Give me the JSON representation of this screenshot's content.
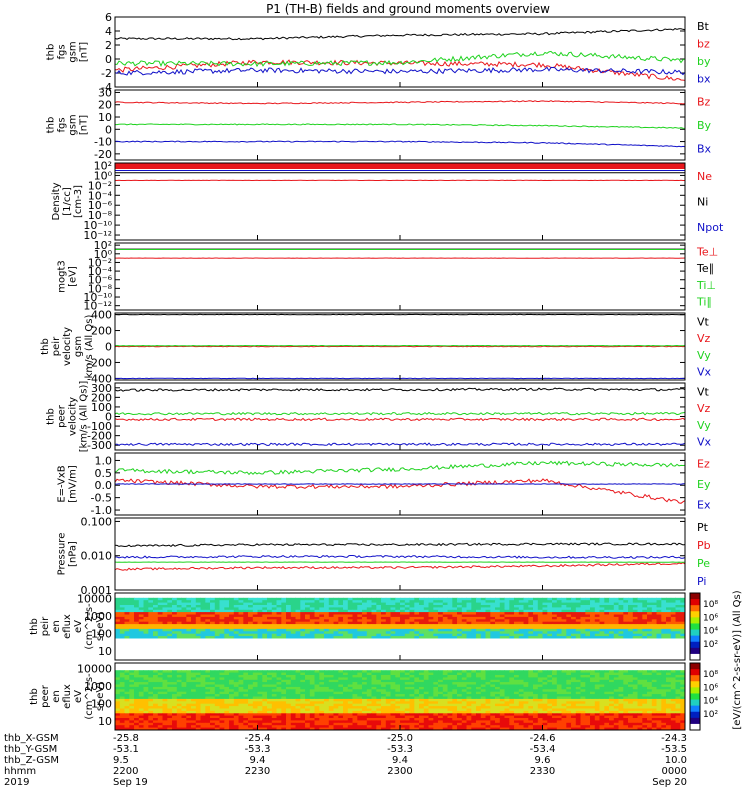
{
  "title": "P1 (TH-B) fields and ground moments overview",
  "colors": {
    "black": "#000000",
    "red": "#e8161b",
    "green": "#1fd21f",
    "blue": "#1010c8"
  },
  "panels": [
    {
      "id": "p1",
      "ylabel": [
        "thb",
        "fgs",
        "gsm",
        "[nT]"
      ],
      "yticks": [
        6,
        4,
        2,
        0,
        -2,
        -4
      ],
      "ylim": [
        -4,
        6
      ],
      "legend": [
        {
          "text": "Bt",
          "color": "black"
        },
        {
          "text": "bz",
          "color": "red"
        },
        {
          "text": "by",
          "color": "green"
        },
        {
          "text": "bx",
          "color": "blue"
        }
      ]
    },
    {
      "id": "p2",
      "ylabel": [
        "thb",
        "fgs",
        "gsm",
        "[nT]"
      ],
      "yticks": [
        30,
        20,
        10,
        0,
        -10,
        -20
      ],
      "ylim": [
        -25,
        32
      ],
      "legend": [
        {
          "text": "Bz",
          "color": "red"
        },
        {
          "text": "By",
          "color": "green"
        },
        {
          "text": "Bx",
          "color": "blue"
        }
      ]
    },
    {
      "id": "p3",
      "ylabel": [
        "Density",
        "[1/cc]",
        "[cm-3]"
      ],
      "yticks": [
        "10²",
        "10⁰",
        "10⁻²",
        "10⁻⁴",
        "10⁻⁶",
        "10⁻⁸",
        "10⁻¹⁰",
        "10⁻¹²"
      ],
      "ylim": [
        -13,
        2.5
      ],
      "legend": [
        {
          "text": "Ne",
          "color": "red"
        },
        {
          "text": "Ni",
          "color": "black"
        },
        {
          "text": "Npot",
          "color": "blue"
        }
      ]
    },
    {
      "id": "p4",
      "ylabel": [
        "mogt3",
        "[eV]"
      ],
      "yticks": [
        "10²",
        "10⁰",
        "10⁻²",
        "10⁻⁴",
        "10⁻⁶",
        "10⁻⁸",
        "10⁻¹⁰",
        "10⁻¹²"
      ],
      "ylim": [
        -13,
        2.5
      ],
      "legend": [
        {
          "text": "Te⊥",
          "color": "red"
        },
        {
          "text": "Te∥",
          "color": "black"
        },
        {
          "text": "Ti⊥",
          "color": "green"
        },
        {
          "text": "Ti∥",
          "color": "green"
        }
      ]
    },
    {
      "id": "p5",
      "ylabel": [
        "thb",
        "peir",
        "velocity",
        "gsm",
        "km/s (All Qs)"
      ],
      "yticks": [
        400,
        200,
        0,
        -200,
        -400
      ],
      "ylim": [
        -420,
        420
      ],
      "legend": [
        {
          "text": "Vt",
          "color": "black"
        },
        {
          "text": "Vz",
          "color": "red"
        },
        {
          "text": "Vy",
          "color": "green"
        },
        {
          "text": "Vx",
          "color": "blue"
        }
      ]
    },
    {
      "id": "p6",
      "ylabel": [
        "thb",
        "peer",
        "velocity",
        "[km/s (All Qs)]"
      ],
      "yticks": [
        300,
        200,
        100,
        0,
        -100,
        -200,
        -300
      ],
      "ylim": [
        -350,
        350
      ],
      "legend": [
        {
          "text": "Vt",
          "color": "black"
        },
        {
          "text": "Vz",
          "color": "red"
        },
        {
          "text": "Vy",
          "color": "green"
        },
        {
          "text": "Vx",
          "color": "blue"
        }
      ]
    },
    {
      "id": "p7",
      "ylabel": [
        "E=-VxB",
        "[mV/m]"
      ],
      "yticks": [
        "1.0",
        "0.5",
        "0.0",
        "-0.5",
        "-1.0"
      ],
      "ylim": [
        -1.2,
        1.3
      ],
      "legend": [
        {
          "text": "Ez",
          "color": "red"
        },
        {
          "text": "Ey",
          "color": "green"
        },
        {
          "text": "Ex",
          "color": "blue"
        }
      ]
    },
    {
      "id": "p8",
      "ylabel": [
        "Pressure",
        "[nPa]"
      ],
      "yticks": [
        "0.100",
        "0.010",
        "0.001"
      ],
      "ylim": [
        -3,
        -0.9
      ],
      "legend": [
        {
          "text": "Pt",
          "color": "black"
        },
        {
          "text": "Pb",
          "color": "red"
        },
        {
          "text": "Pe",
          "color": "green"
        },
        {
          "text": "Pi",
          "color": "blue"
        }
      ]
    },
    {
      "id": "p9",
      "ylabel": [
        "thb",
        "peir",
        "en",
        "eflux",
        "eV",
        "(cm^2-s-",
        "sr-eV)"
      ],
      "yticks": [
        "10000",
        "1000",
        "100",
        "10"
      ],
      "ylim": [
        0.5,
        4.3
      ]
    },
    {
      "id": "p10",
      "ylabel": [
        "thb",
        "peer",
        "en",
        "eflux",
        "eV",
        "(cm^2-s-",
        "sr-eV)"
      ],
      "yticks": [
        "10000",
        "1000",
        "100",
        "10"
      ],
      "ylim": [
        0.5,
        4.3
      ]
    }
  ],
  "colorbar": {
    "label": "[eV/(cm^2-s-sr-eV)] (All Qs)",
    "ticks": [
      "10⁸",
      "10⁶",
      "10⁴",
      "10²"
    ]
  },
  "footer": {
    "row_labels": [
      "thb_X-GSM",
      "thb_Y-GSM",
      "thb_Z-GSM",
      "hhmm",
      "2019"
    ],
    "columns": [
      {
        "x": "-25.8",
        "y": "-53.1",
        "z": "9.5",
        "hhmm": "2200",
        "date": "Sep 19"
      },
      {
        "x": "-25.4",
        "y": "-53.3",
        "z": "9.4",
        "hhmm": "2230",
        "date": ""
      },
      {
        "x": "-25.0",
        "y": "-53.3",
        "z": "9.4",
        "hhmm": "2300",
        "date": ""
      },
      {
        "x": "-24.6",
        "y": "-53.4",
        "z": "9.6",
        "hhmm": "2330",
        "date": ""
      },
      {
        "x": "-24.3",
        "y": "-53.5",
        "z": "10.0",
        "hhmm": "0000",
        "date": "Sep 20"
      }
    ]
  },
  "chart_data": {
    "type": "line",
    "title": "P1 (TH-B) fields and ground moments overview",
    "x": [
      "2200",
      "2230",
      "2300",
      "2330",
      "0000"
    ],
    "xlabel": "hhmm",
    "series": [
      {
        "name": "Bt",
        "panel": "p1",
        "values": [
          2.9,
          2.9,
          3.4,
          3.6,
          4.3
        ]
      },
      {
        "name": "bz",
        "panel": "p1",
        "values": [
          -1.6,
          -0.4,
          -0.6,
          -0.8,
          -3.0
        ]
      },
      {
        "name": "by",
        "panel": "p1",
        "values": [
          -0.6,
          -0.7,
          -0.5,
          0.9,
          -0.2
        ]
      },
      {
        "name": "bx",
        "panel": "p1",
        "values": [
          -2.0,
          -1.6,
          -1.8,
          -1.5,
          -1.9
        ]
      },
      {
        "name": "Bz",
        "panel": "p2",
        "values": [
          22,
          21,
          22,
          23,
          21
        ]
      },
      {
        "name": "By",
        "panel": "p2",
        "values": [
          4,
          4,
          4,
          3,
          1
        ]
      },
      {
        "name": "Bx",
        "panel": "p2",
        "values": [
          -10,
          -10,
          -10,
          -11,
          -14
        ]
      },
      {
        "name": "Ne",
        "panel": "p3",
        "values": [
          0.1,
          0.1,
          0.1,
          0.1,
          0.1
        ]
      },
      {
        "name": "Te⊥",
        "panel": "p4",
        "values": [
          0.1,
          0.1,
          0.1,
          0.1,
          0.1
        ]
      },
      {
        "name": "Vt",
        "panel": "p5",
        "values": [
          400,
          400,
          400,
          400,
          400
        ]
      },
      {
        "name": "Vz",
        "panel": "p5",
        "values": [
          0,
          0,
          0,
          0,
          0
        ]
      },
      {
        "name": "Vy",
        "panel": "p5",
        "values": [
          10,
          10,
          10,
          10,
          10
        ]
      },
      {
        "name": "Vx",
        "panel": "p5",
        "values": [
          -400,
          -400,
          -400,
          -400,
          -400
        ]
      },
      {
        "name": "Vt",
        "panel": "p6",
        "values": [
          275,
          280,
          280,
          285,
          280
        ]
      },
      {
        "name": "Vz",
        "panel": "p6",
        "values": [
          -30,
          -30,
          -30,
          -30,
          -30
        ]
      },
      {
        "name": "Vy",
        "panel": "p6",
        "values": [
          30,
          30,
          30,
          30,
          30
        ]
      },
      {
        "name": "Vx",
        "panel": "p6",
        "values": [
          -290,
          -290,
          -290,
          -290,
          -290
        ]
      },
      {
        "name": "Ez",
        "panel": "p7",
        "values": [
          0.2,
          -0.05,
          -0.05,
          0.2,
          -0.7
        ]
      },
      {
        "name": "Ey",
        "panel": "p7",
        "values": [
          0.6,
          0.5,
          0.65,
          0.9,
          0.8
        ]
      },
      {
        "name": "Ex",
        "panel": "p7",
        "values": [
          0.05,
          0.05,
          0.05,
          0.05,
          0.05
        ]
      },
      {
        "name": "Pt",
        "panel": "p8",
        "values": [
          0.019,
          0.021,
          0.021,
          0.022,
          0.022
        ]
      },
      {
        "name": "Pb",
        "panel": "p8",
        "values": [
          0.004,
          0.0045,
          0.0045,
          0.005,
          0.006
        ]
      },
      {
        "name": "Pe",
        "panel": "p8",
        "values": [
          0.0065,
          0.0065,
          0.0065,
          0.0065,
          0.0065
        ]
      },
      {
        "name": "Pi",
        "panel": "p8",
        "values": [
          0.009,
          0.0095,
          0.0095,
          0.009,
          0.009
        ]
      }
    ]
  }
}
